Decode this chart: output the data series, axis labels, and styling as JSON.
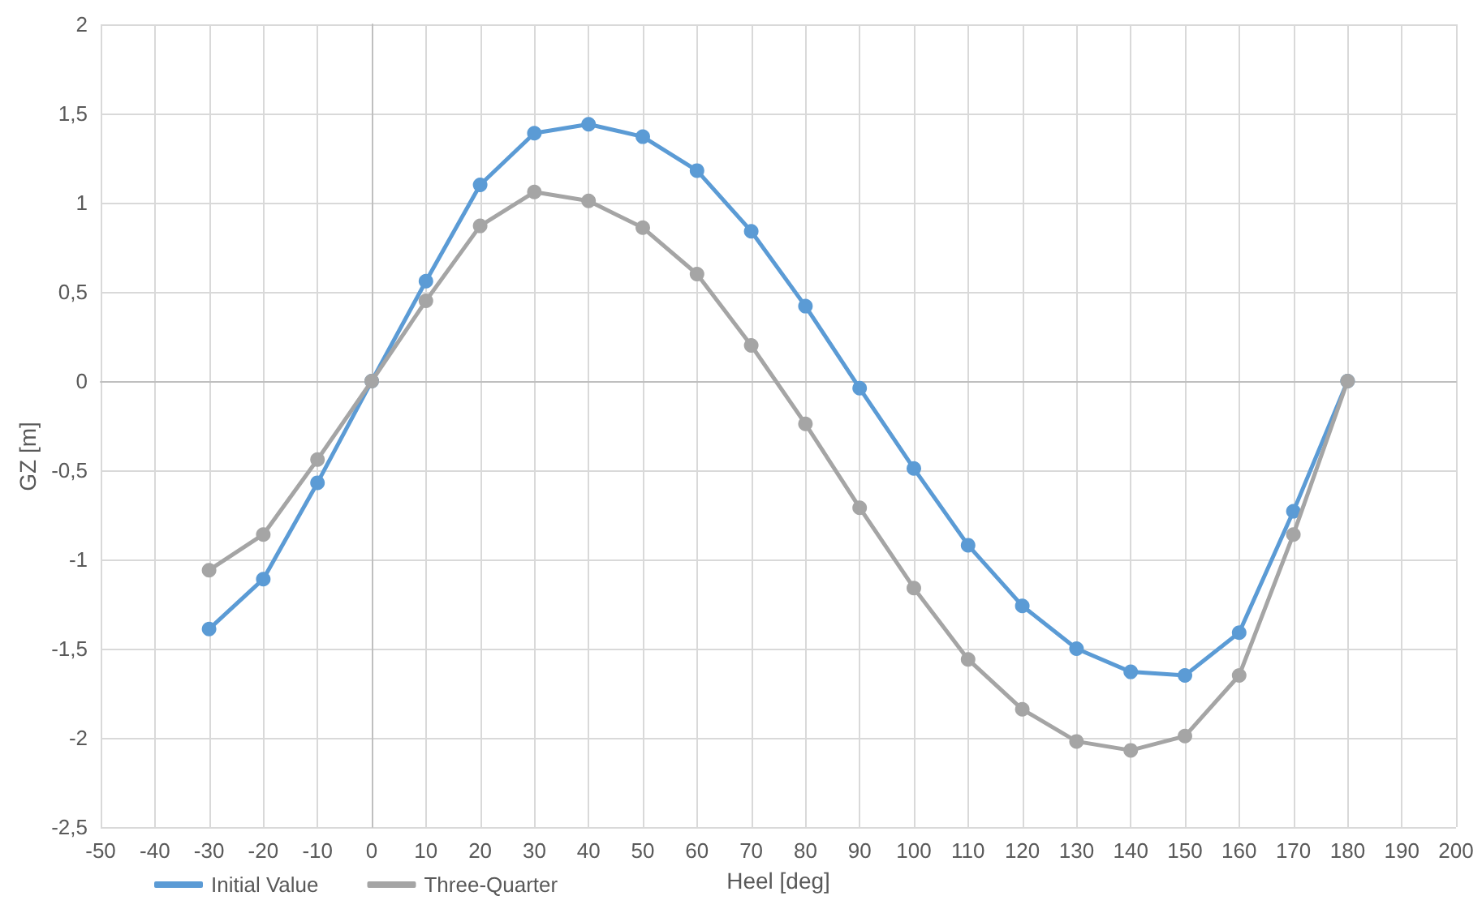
{
  "chart_data": {
    "type": "line",
    "xlabel": "Heel [deg]",
    "ylabel": "GZ [m]",
    "x": [
      -30,
      -20,
      -10,
      0,
      10,
      20,
      30,
      40,
      50,
      60,
      70,
      80,
      90,
      100,
      110,
      120,
      130,
      140,
      150,
      160,
      170,
      180
    ],
    "series": [
      {
        "name": "Initial Value",
        "color": "#5b9bd5",
        "values": [
          -1.39,
          -1.11,
          -0.57,
          0,
          0.56,
          1.1,
          1.39,
          1.44,
          1.37,
          1.18,
          0.84,
          0.42,
          -0.04,
          -0.49,
          -0.92,
          -1.26,
          -1.5,
          -1.63,
          -1.65,
          -1.41,
          -0.73,
          0
        ]
      },
      {
        "name": "Three-Quarter",
        "color": "#a5a5a5",
        "values": [
          -1.06,
          -0.86,
          -0.44,
          0,
          0.45,
          0.87,
          1.06,
          1.01,
          0.86,
          0.6,
          0.2,
          -0.24,
          -0.71,
          -1.16,
          -1.56,
          -1.84,
          -2.02,
          -2.07,
          -1.99,
          -1.65,
          -0.86,
          0
        ]
      }
    ],
    "xlim": [
      -50,
      200
    ],
    "xticks": [
      -50,
      -40,
      -30,
      -20,
      -10,
      0,
      10,
      20,
      30,
      40,
      50,
      60,
      70,
      80,
      90,
      100,
      110,
      120,
      130,
      140,
      150,
      160,
      170,
      180,
      190,
      200
    ],
    "ylim": [
      -2.5,
      2
    ],
    "yticks": [
      {
        "value": -2.5,
        "label": "-2,5"
      },
      -2,
      {
        "value": -1.5,
        "label": "-1,5"
      },
      -1,
      {
        "value": -0.5,
        "label": "-0,5"
      },
      0,
      {
        "value": 0.5,
        "label": "0,5"
      },
      1,
      {
        "value": 1.5,
        "label": "1,5"
      },
      2
    ],
    "grid": true,
    "legend": "bottom left",
    "marker": "circle",
    "line_style": "solid"
  }
}
